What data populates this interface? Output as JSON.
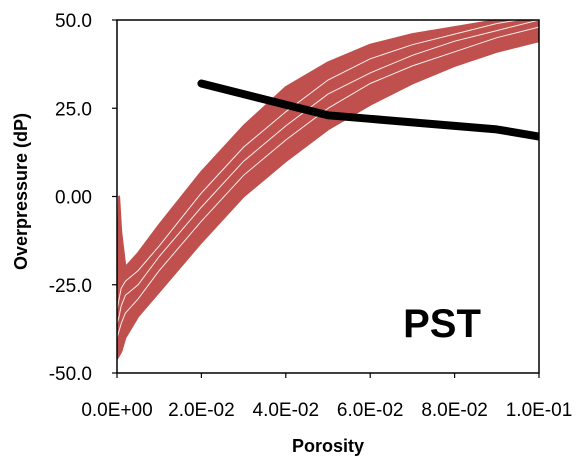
{
  "chart_data": {
    "type": "line",
    "title": "",
    "xlabel": "Porosity",
    "ylabel": "Overpressure (dP)",
    "xlim": [
      0,
      0.1
    ],
    "ylim": [
      -50,
      50
    ],
    "x_ticks": [
      0,
      0.02,
      0.04,
      0.06,
      0.08,
      0.1
    ],
    "x_tick_labels": [
      "0.0E+00",
      "2.0E-02",
      "4.0E-02",
      "6.0E-02",
      "8.0E-02",
      "1.0E-01"
    ],
    "y_ticks": [
      -50,
      -25,
      0,
      25,
      50
    ],
    "y_tick_labels": [
      "-50.0",
      "-25.0",
      "0.00",
      "25.0",
      "50.0"
    ],
    "grid": false,
    "legend": "none",
    "annotation": "PST",
    "series": [
      {
        "color": "#C0504D",
        "style": "band",
        "x": [
          0.0,
          0.0005,
          0.001,
          0.002,
          0.005,
          0.01,
          0.02,
          0.03,
          0.04,
          0.05,
          0.06,
          0.07,
          0.08,
          0.09,
          0.1
        ],
        "upper": [
          -25,
          0,
          -10,
          -20,
          -16,
          -8,
          7,
          20,
          31,
          38,
          43,
          46,
          48,
          50,
          52
        ],
        "lower": [
          -46,
          -45,
          -44,
          -40,
          -34,
          -27,
          -13,
          0,
          10,
          19,
          26,
          32,
          37,
          41,
          44
        ],
        "inner_lines": [
          [
            -40,
            -38,
            -36,
            -33,
            -29,
            -21,
            -7,
            6,
            16,
            25,
            32,
            37,
            41,
            45,
            48
          ],
          [
            -36,
            -34,
            -31,
            -28,
            -25,
            -17,
            -3,
            10,
            20,
            29,
            35,
            40,
            44,
            47,
            50
          ],
          [
            -32,
            -29,
            -26,
            -24,
            -21,
            -14,
            1,
            14,
            24,
            33,
            39,
            43,
            46,
            49,
            51
          ]
        ]
      },
      {
        "color": "#000000",
        "style": "line",
        "x": [
          0.02,
          0.03,
          0.04,
          0.05,
          0.06,
          0.07,
          0.08,
          0.09,
          0.1
        ],
        "y": [
          32,
          29,
          26,
          23,
          22,
          21,
          20,
          19,
          17
        ]
      }
    ]
  }
}
